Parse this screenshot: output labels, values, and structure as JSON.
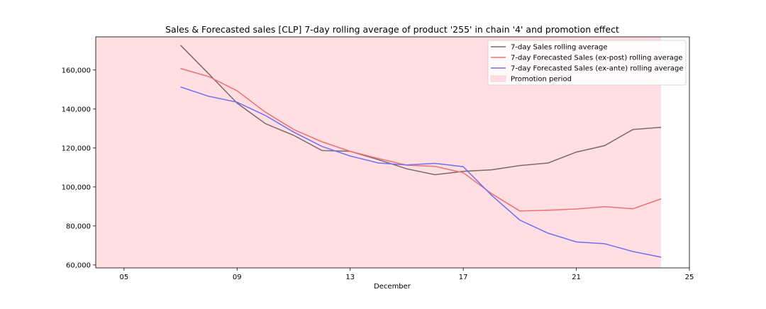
{
  "chart_data": {
    "type": "line",
    "title": "Sales & Forecasted sales [CLP] 7-day rolling average of product '255' in chain '4' and promotion effect",
    "xlabel": "December",
    "ylabel": "",
    "x_ticks": [
      "05",
      "09",
      "13",
      "17",
      "21",
      "25"
    ],
    "y_ticks": [
      "60,000",
      "80,000",
      "100,000",
      "120,000",
      "140,000",
      "160,000"
    ],
    "xlim": [
      4,
      25
    ],
    "ylim": [
      58500,
      177000
    ],
    "promotion": {
      "label": "Promotion period",
      "start": 4,
      "end": 24,
      "color": "#ffdfe3"
    },
    "series": [
      {
        "name": "7-day Sales rolling average",
        "color": "#7a6a6a",
        "x": [
          7,
          8,
          9,
          10,
          11,
          12,
          13,
          14,
          15,
          16,
          17,
          18,
          19,
          20,
          21,
          22,
          23,
          24
        ],
        "y": [
          172700,
          158000,
          143000,
          132500,
          126500,
          118700,
          118300,
          114000,
          109300,
          106300,
          108000,
          108800,
          111000,
          112300,
          117900,
          121200,
          129500,
          130600
        ]
      },
      {
        "name": "7-day Forecasted Sales (ex-post) rolling average",
        "color": "#f07070",
        "x": [
          7,
          8,
          9,
          10,
          11,
          12,
          13,
          14,
          15,
          16,
          17,
          18,
          19,
          20,
          21,
          22,
          23,
          24
        ],
        "y": [
          160800,
          156600,
          149300,
          138400,
          129500,
          123200,
          118300,
          114600,
          111200,
          110600,
          107300,
          96600,
          87700,
          88100,
          88700,
          89900,
          88800,
          93900
        ]
      },
      {
        "name": "7-day Forecasted Sales (ex-ante) rolling average",
        "color": "#7070f0",
        "x": [
          7,
          8,
          9,
          10,
          11,
          12,
          13,
          14,
          15,
          16,
          17,
          18,
          19,
          20,
          21,
          22,
          23,
          24
        ],
        "y": [
          151300,
          146500,
          143500,
          136700,
          128200,
          120800,
          115900,
          112300,
          111300,
          112100,
          110400,
          95800,
          83000,
          76300,
          71800,
          70900,
          66900,
          64000
        ]
      }
    ],
    "legend_position": "top-right",
    "grid": false
  }
}
